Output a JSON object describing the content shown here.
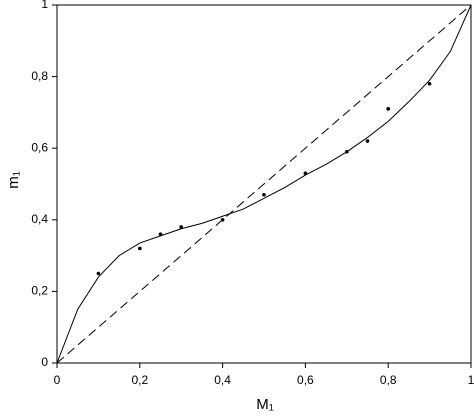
{
  "chart_data": {
    "type": "scatter",
    "x_label": "M₁",
    "y_label": "m₁",
    "xlim": [
      0,
      1
    ],
    "ylim": [
      0,
      1
    ],
    "xticks": [
      0,
      {
        "value": 0.2,
        "label": "0,2"
      },
      {
        "value": 0.4,
        "label": "0,4"
      },
      {
        "value": 0.6,
        "label": "0,6"
      },
      {
        "value": 0.8,
        "label": "0,8"
      },
      1
    ],
    "yticks": [
      0,
      {
        "value": 0.2,
        "label": "0,2"
      },
      {
        "value": 0.4,
        "label": "0,4"
      },
      {
        "value": 0.6,
        "label": "0,6"
      },
      {
        "value": 0.8,
        "label": "0,8"
      },
      1
    ],
    "grid": false,
    "series": [
      {
        "mode": "markers",
        "color": "#000000",
        "x": [
          0.1,
          0.2,
          0.25,
          0.3,
          0.4,
          0.5,
          0.6,
          0.7,
          0.75,
          0.8,
          0.9
        ],
        "values": [
          0.25,
          0.32,
          0.36,
          0.38,
          0.4,
          0.47,
          0.53,
          0.59,
          0.62,
          0.71,
          0.78
        ]
      },
      {
        "mode": "line",
        "color": "#000000",
        "x": [
          0,
          0.05,
          0.1,
          0.15,
          0.2,
          0.25,
          0.3,
          0.35,
          0.4,
          0.45,
          0.5,
          0.55,
          0.6,
          0.65,
          0.7,
          0.75,
          0.8,
          0.85,
          0.9,
          0.95,
          1
        ],
        "values": [
          0,
          0.15,
          0.24,
          0.3,
          0.335,
          0.355,
          0.375,
          0.39,
          0.41,
          0.43,
          0.46,
          0.49,
          0.525,
          0.555,
          0.59,
          0.63,
          0.675,
          0.73,
          0.79,
          0.87,
          1
        ]
      },
      {
        "mode": "dashed",
        "color": "#000000",
        "x": [
          0,
          1
        ],
        "values": [
          0,
          1
        ]
      }
    ]
  }
}
